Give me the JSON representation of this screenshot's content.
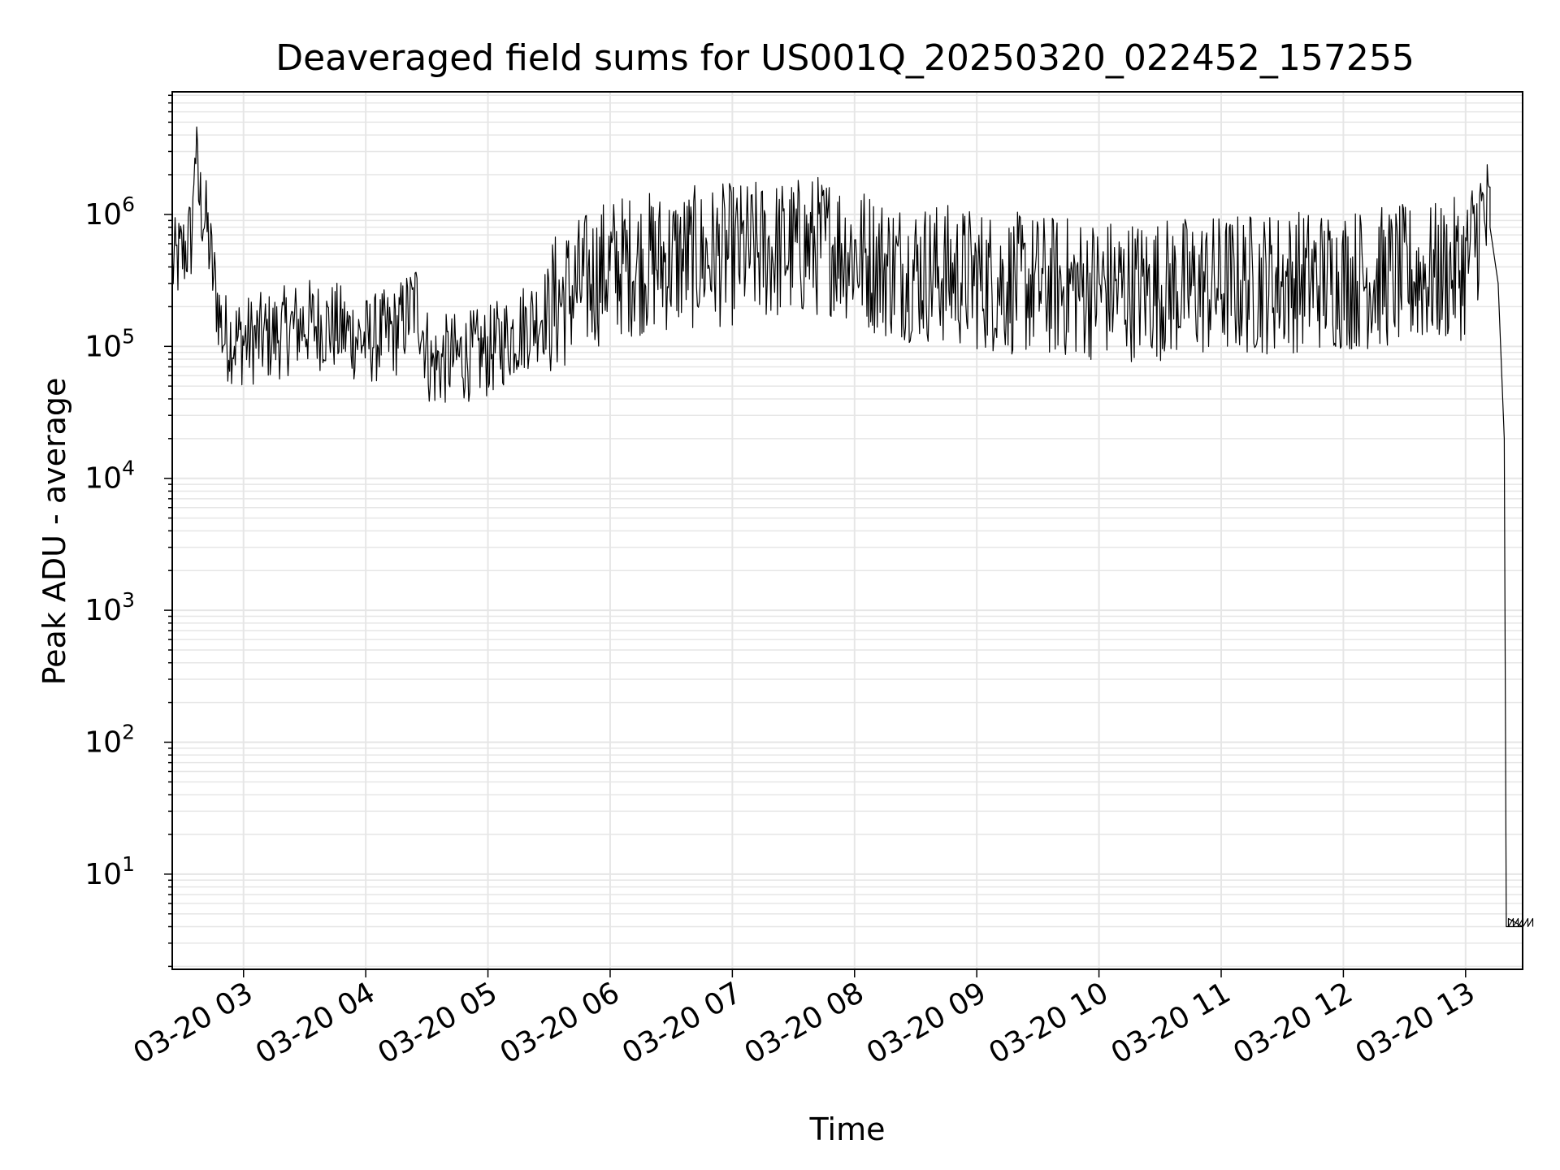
{
  "chart_data": {
    "type": "line",
    "title": "Deaveraged field sums for US001Q_20250320_022452_157255",
    "xlabel": "Time",
    "ylabel": "Peak ADU - average",
    "y_scale": "log",
    "ylim": [
      1.9,
      8500000
    ],
    "xlim": [
      "2025-03-20 02:25",
      "2025-03-20 13:28"
    ],
    "grid": true,
    "line_color": "#000000",
    "grid_color": "#e6e6e6",
    "x_ticks": [
      {
        "time": "2025-03-20 03:00",
        "label": "03-20 03"
      },
      {
        "time": "2025-03-20 04:00",
        "label": "03-20 04"
      },
      {
        "time": "2025-03-20 05:00",
        "label": "03-20 05"
      },
      {
        "time": "2025-03-20 06:00",
        "label": "03-20 06"
      },
      {
        "time": "2025-03-20 07:00",
        "label": "03-20 07"
      },
      {
        "time": "2025-03-20 08:00",
        "label": "03-20 08"
      },
      {
        "time": "2025-03-20 09:00",
        "label": "03-20 09"
      },
      {
        "time": "2025-03-20 10:00",
        "label": "03-20 10"
      },
      {
        "time": "2025-03-20 11:00",
        "label": "03-20 11"
      },
      {
        "time": "2025-03-20 12:00",
        "label": "03-20 12"
      },
      {
        "time": "2025-03-20 13:00",
        "label": "03-20 13"
      }
    ],
    "y_ticks": [
      {
        "value": 10,
        "base": "10",
        "exp": "1"
      },
      {
        "value": 100,
        "base": "10",
        "exp": "2"
      },
      {
        "time_unused": "",
        "value": 1000,
        "base": "10",
        "exp": "3"
      },
      {
        "value": 10000,
        "base": "10",
        "exp": "4"
      },
      {
        "value": 100000,
        "base": "10",
        "exp": "5"
      },
      {
        "value": 1000000,
        "base": "10",
        "exp": "6"
      }
    ],
    "series": [
      {
        "x": [
          "2025-03-20 02:25",
          "2025-03-20 02:30",
          "2025-03-20 02:35",
          "2025-03-20 02:36",
          "2025-03-20 02:38",
          "2025-03-20 02:42",
          "2025-03-20 02:45",
          "2025-03-20 02:50",
          "2025-03-20 03:00",
          "2025-03-20 03:15",
          "2025-03-20 03:30",
          "2025-03-20 03:45",
          "2025-03-20 04:00",
          "2025-03-20 04:15",
          "2025-03-20 04:25",
          "2025-03-20 04:32",
          "2025-03-20 04:40",
          "2025-03-20 05:00",
          "2025-03-20 05:20",
          "2025-03-20 05:40",
          "2025-03-20 06:00",
          "2025-03-20 06:30",
          "2025-03-20 07:00",
          "2025-03-20 07:30",
          "2025-03-20 07:50",
          "2025-03-20 08:15",
          "2025-03-20 08:45",
          "2025-03-20 09:15",
          "2025-03-20 09:45",
          "2025-03-20 10:15",
          "2025-03-20 10:45",
          "2025-03-20 11:15",
          "2025-03-20 11:45",
          "2025-03-20 12:15",
          "2025-03-20 12:45",
          "2025-03-20 13:00",
          "2025-03-20 13:08",
          "2025-03-20 13:12",
          "2025-03-20 13:16",
          "2025-03-20 13:19",
          "2025-03-20 13:20",
          "2025-03-20 13:21",
          "2025-03-20 13:28"
        ],
        "y": [
          400000,
          500000,
          700000,
          4000000,
          1400000,
          800000,
          350000,
          120000,
          110000,
          120000,
          150000,
          140000,
          110000,
          130000,
          220000,
          70000,
          80000,
          90000,
          150000,
          250000,
          400000,
          450000,
          500000,
          550000,
          600000,
          400000,
          350000,
          300000,
          280000,
          270000,
          280000,
          300000,
          320000,
          330000,
          350000,
          400000,
          950000,
          800000,
          300000,
          20000,
          4,
          4,
          4
        ]
      }
    ]
  }
}
